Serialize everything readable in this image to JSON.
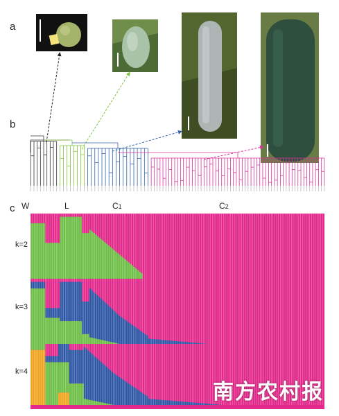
{
  "panels": {
    "a": "a",
    "b": "b",
    "c": "c"
  },
  "clades": [
    {
      "name": "W",
      "sub": ""
    },
    {
      "name": "L",
      "sub": ""
    },
    {
      "name": "C",
      "sub": "1"
    },
    {
      "name": "C",
      "sub": "2"
    }
  ],
  "k_values": [
    "k=2",
    "k=3",
    "k=4"
  ],
  "watermark": "南方农村报",
  "colors": {
    "wild": "#333333",
    "landrace": "#7cc23d",
    "c1": "#2f5fa8",
    "c2": "#d6329a",
    "pink": "#e2288a",
    "green": "#6dbf45",
    "blue": "#2d57a5",
    "orange": "#f0a420"
  },
  "photos": [
    {
      "name": "small-round-fruit",
      "color": "#9caf63"
    },
    {
      "name": "light-green-fruit",
      "color": "#a9c3a2"
    },
    {
      "name": "long-waxy-fruit",
      "color": "#aab3b2"
    },
    {
      "name": "dark-green-fruit",
      "color": "#2e4f3c"
    }
  ]
}
